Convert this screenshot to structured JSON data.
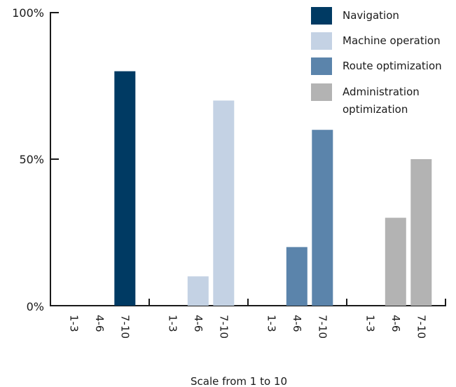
{
  "chart_data": {
    "type": "bar",
    "categories": [
      "1-3",
      "4-6",
      "7-10"
    ],
    "series": [
      {
        "name": "Navigation",
        "values": [
          0,
          0,
          80
        ],
        "color": "#003a63"
      },
      {
        "name": "Machine operation",
        "values": [
          0,
          10,
          70
        ],
        "color": "#c4d2e4"
      },
      {
        "name": "Route optimization",
        "values": [
          0,
          20,
          60
        ],
        "color": "#5b84ab"
      },
      {
        "name": "Administration optimization",
        "values": [
          0,
          30,
          50
        ],
        "color": "#b3b3b3"
      }
    ],
    "yticks": [
      "0%",
      "50%",
      "100%"
    ],
    "ylim": [
      0,
      100
    ],
    "xlabel": "Scale from 1 to 10",
    "ylabel": "",
    "legend_position": "top-right",
    "grid": false
  }
}
